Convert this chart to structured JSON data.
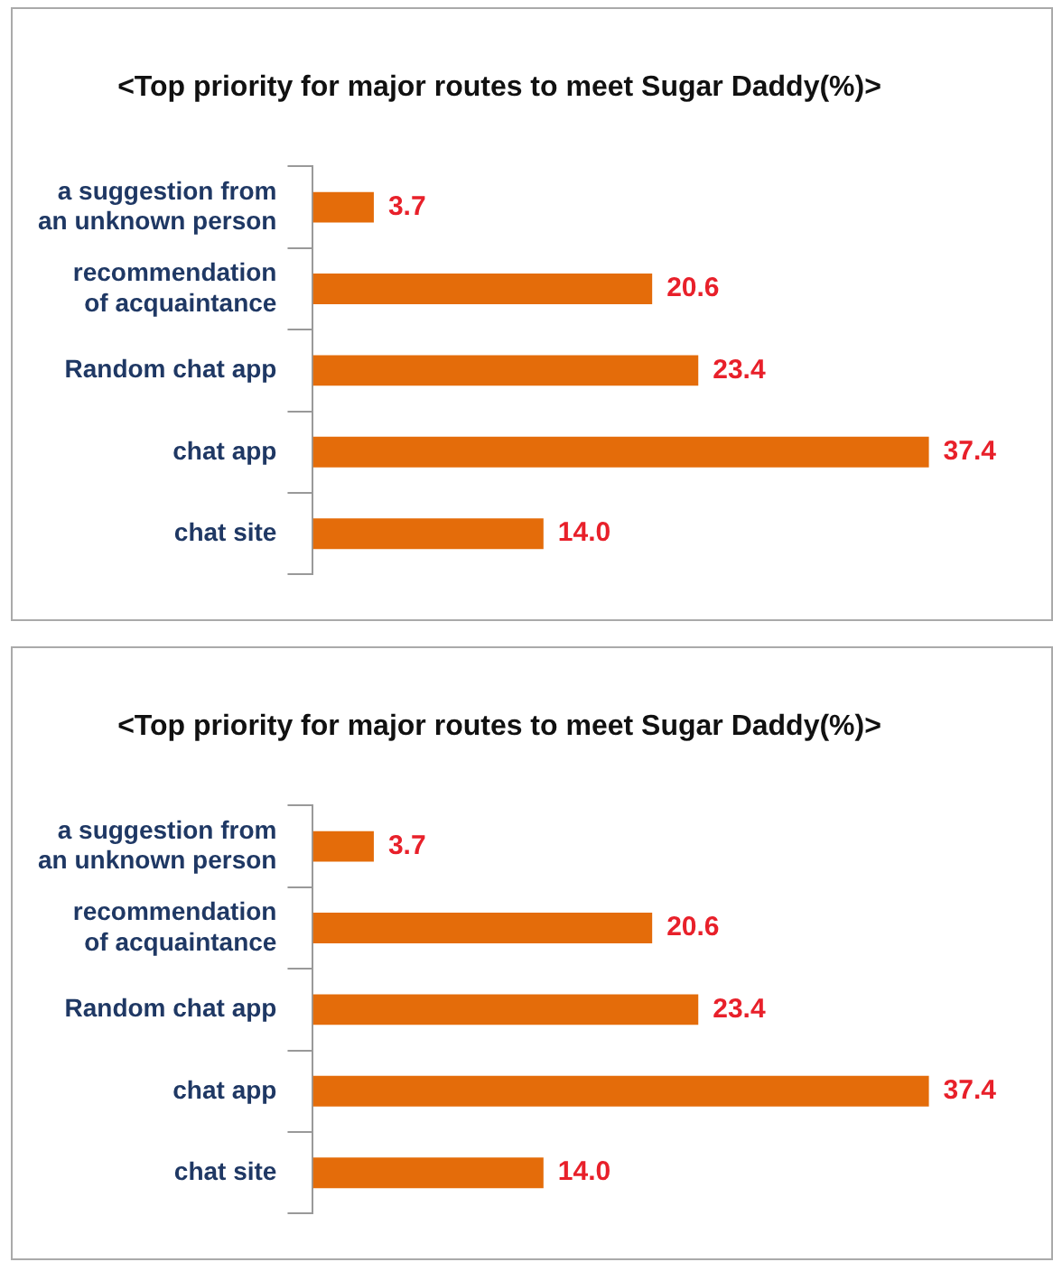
{
  "chart_data": [
    {
      "type": "bar",
      "orientation": "horizontal",
      "title": "<Top priority for major routes to meet Sugar Daddy(%)>",
      "categories": [
        "a suggestion from an unknown person",
        "recommendation of acquaintance",
        "Random chat app",
        "chat app",
        "chat site"
      ],
      "values": [
        3.7,
        20.6,
        23.4,
        37.4,
        14.0
      ],
      "value_labels": [
        "3.7",
        "20.6",
        "23.4",
        "37.4",
        "14.0"
      ],
      "color": "#e46c0a"
    },
    {
      "type": "bar",
      "orientation": "horizontal",
      "title": "<Top priority for major routes to meet Sugar Daddy(%)>",
      "categories": [
        "a suggestion from an unknown person",
        "recommendation of acquaintance",
        "Random chat app",
        "chat app",
        "chat site"
      ],
      "values": [
        3.7,
        20.6,
        23.4,
        37.4,
        14.0
      ],
      "value_labels": [
        "3.7",
        "20.6",
        "23.4",
        "37.4",
        "14.0"
      ],
      "color": "#e46c0a"
    }
  ]
}
